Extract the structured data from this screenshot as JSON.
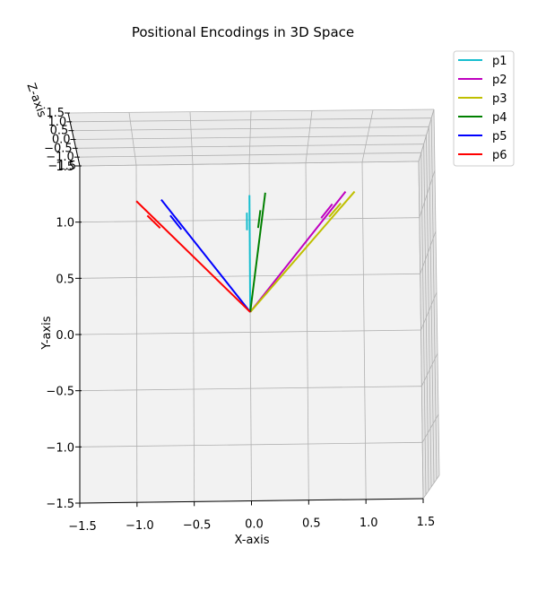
{
  "chart_data": {
    "type": "line",
    "subtype": "3d-quiver",
    "title": "Positional Encodings in 3D Space",
    "xlabel": "X-axis",
    "ylabel": "Y-axis",
    "zlabel": "Z-axis",
    "xlim": [
      -1.5,
      1.5
    ],
    "ylim": [
      -1.5,
      1.5
    ],
    "zlim": [
      -1.5,
      1.5
    ],
    "x_ticks": [
      "−1.5",
      "−1.0",
      "−0.5",
      "0.0",
      "0.5",
      "1.0",
      "1.5"
    ],
    "y_ticks": [
      "−1.5",
      "−1.0",
      "−0.5",
      "0.0",
      "0.5",
      "1.0",
      "1.5"
    ],
    "z_ticks": [
      "−1.5",
      "−1.0",
      "−0.5",
      "0.0",
      "0.5",
      "1.0",
      "1.5"
    ],
    "grid": true,
    "legend_position": "top-right",
    "origin": [
      0,
      0.18,
      0
    ],
    "series": [
      {
        "name": "p1",
        "color": "#17becf",
        "end": [
          0.0,
          1.22,
          0
        ]
      },
      {
        "name": "p2",
        "color": "#bf00bf",
        "end": [
          0.85,
          1.24,
          0
        ]
      },
      {
        "name": "p3",
        "color": "#bfbf00",
        "end": [
          0.93,
          1.24,
          0
        ]
      },
      {
        "name": "p4",
        "color": "#008000",
        "end": [
          0.14,
          1.24,
          0
        ]
      },
      {
        "name": "p5",
        "color": "#0000ff",
        "end": [
          -0.78,
          1.19,
          0
        ]
      },
      {
        "name": "p6",
        "color": "#ff0000",
        "end": [
          -1.0,
          1.18,
          0
        ]
      }
    ]
  }
}
